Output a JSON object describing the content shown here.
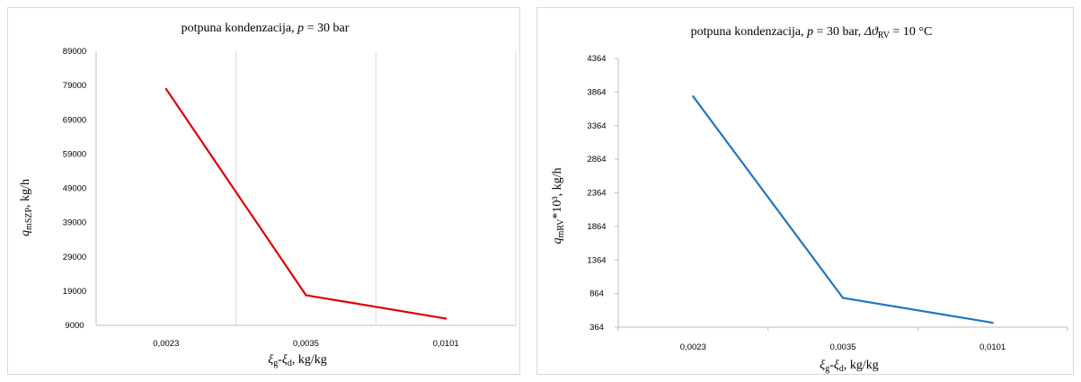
{
  "chart_data": [
    {
      "type": "line",
      "title": "potpuna kondenzacija, p  = 30 bar",
      "title_parts": [
        "potpuna kondenzacija, ",
        "p",
        "  = 30 bar"
      ],
      "categories": [
        "0,0023",
        "0,0035",
        "0,0101"
      ],
      "series": [
        {
          "color": "#e00000",
          "values": [
            78000,
            17800,
            11000
          ]
        }
      ],
      "ylim": [
        9000,
        89000
      ],
      "yticks": [
        "9000",
        "19000",
        "29000",
        "39000",
        "49000",
        "59000",
        "69000",
        "79000",
        "89000"
      ],
      "xlabel_parts": [
        "ξ",
        "g",
        "-ξ",
        "d",
        ", kg/kg"
      ],
      "ylabel_parts": [
        "q",
        "mSZP",
        ", kg/h"
      ],
      "grid": "vertical"
    },
    {
      "type": "line",
      "title": "potpuna kondenzacija, p = 30 bar, Δϑ RV = 10 °C",
      "title_parts": [
        "potpuna kondenzacija, ",
        "p",
        " = 30 bar, ",
        "Δϑ",
        "RV",
        " = 10 °C"
      ],
      "categories": [
        "0,0023",
        "0,0035",
        "0,0101"
      ],
      "series": [
        {
          "color": "#1f77c1",
          "values": [
            3800,
            800,
            430
          ]
        }
      ],
      "ylim": [
        364,
        4364
      ],
      "yticks": [
        "364",
        "864",
        "1364",
        "1864",
        "2364",
        "2864",
        "3364",
        "3864",
        "4364"
      ],
      "xlabel_parts": [
        "ξ",
        "g",
        "-ξ",
        "d",
        ", kg/kg"
      ],
      "ylabel_parts": [
        "q",
        "mRV",
        "*10³, kg/h"
      ],
      "grid": "none"
    }
  ]
}
